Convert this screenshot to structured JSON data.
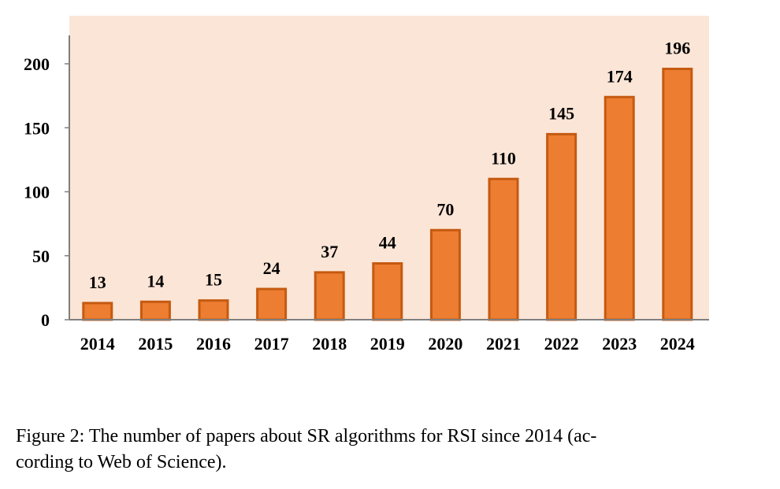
{
  "chart_data": {
    "type": "bar",
    "categories": [
      "2014",
      "2015",
      "2016",
      "2017",
      "2018",
      "2019",
      "2020",
      "2021",
      "2022",
      "2023",
      "2024"
    ],
    "values": [
      13,
      14,
      15,
      24,
      37,
      44,
      70,
      110,
      145,
      174,
      196
    ],
    "data_labels": [
      "13",
      "14",
      "15",
      "24",
      "37",
      "44",
      "70",
      "110",
      "145",
      "174",
      "196"
    ],
    "yticks": [
      "0",
      "50",
      "100",
      "150",
      "200"
    ],
    "ylim": [
      0,
      220
    ],
    "grid": false,
    "title": "",
    "xlabel": "",
    "ylabel": "",
    "colors": {
      "bar_fill": "#ed7d31",
      "bar_stroke": "#c55a11",
      "plot_background": "#fbe5d6",
      "axis": "#7f7f7f"
    }
  },
  "caption": {
    "line1": "Figure 2: The number of papers about SR algorithms for RSI since 2014 (ac-",
    "line2": "cording to Web of Science)."
  }
}
